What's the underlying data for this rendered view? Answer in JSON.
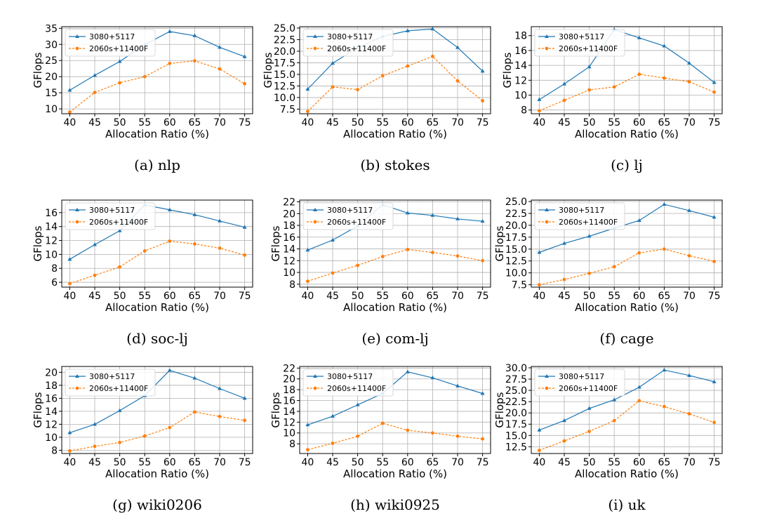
{
  "colors": {
    "series1": "#1f77b4",
    "series2": "#ff7f0e",
    "grid": "#b0b0b0",
    "axis": "#000000"
  },
  "chart_data": [
    {
      "type": "line",
      "caption": "(a) nlp",
      "xlabel": "Allocation Ratio (%)",
      "ylabel": "GFlops",
      "x": [
        40,
        45,
        50,
        55,
        60,
        65,
        70,
        75
      ],
      "ylim": [
        8.5,
        35.5
      ],
      "yticks": [
        10,
        15,
        20,
        25,
        30,
        35
      ],
      "yticklabels": [
        "10",
        "15",
        "20",
        "25",
        "30",
        "35"
      ],
      "legend_loc": "upper-left",
      "series": [
        {
          "name": "3080+5117",
          "style": "solid",
          "marker": "triangle",
          "values": [
            15.8,
            20.4,
            24.7,
            29.9,
            34.0,
            32.7,
            29.1,
            26.2
          ]
        },
        {
          "name": "2060s+11400F",
          "style": "dashed",
          "marker": "circle",
          "values": [
            9.0,
            15.1,
            18.1,
            20.0,
            24.1,
            24.9,
            22.4,
            17.8
          ]
        }
      ]
    },
    {
      "type": "line",
      "caption": "(b) stokes",
      "xlabel": "Allocation Ratio (%)",
      "ylabel": "GFlops",
      "x": [
        40,
        45,
        50,
        55,
        60,
        65,
        70,
        75
      ],
      "ylim": [
        6.5,
        25.3
      ],
      "yticks": [
        7.5,
        10,
        12.5,
        15,
        17.5,
        20,
        22.5,
        25
      ],
      "yticklabels": [
        "7.5",
        "10.0",
        "12.5",
        "15.0",
        "17.5",
        "20.0",
        "22.5",
        "25.0"
      ],
      "legend_loc": "upper-left",
      "series": [
        {
          "name": "3080+5117",
          "style": "solid",
          "marker": "triangle",
          "values": [
            11.8,
            17.4,
            20.8,
            23.2,
            24.4,
            24.8,
            20.8,
            15.7
          ]
        },
        {
          "name": "2060s+11400F",
          "style": "dashed",
          "marker": "circle",
          "values": [
            7.0,
            12.3,
            11.7,
            14.7,
            16.8,
            18.9,
            13.6,
            9.3
          ]
        }
      ]
    },
    {
      "type": "line",
      "caption": "(c) lj",
      "xlabel": "Allocation Ratio (%)",
      "ylabel": "GFlops",
      "x": [
        40,
        45,
        50,
        55,
        60,
        65,
        70,
        75
      ],
      "ylim": [
        7.5,
        19.2
      ],
      "yticks": [
        8,
        10,
        12,
        14,
        16,
        18
      ],
      "yticklabels": [
        "8",
        "10",
        "12",
        "14",
        "16",
        "18"
      ],
      "legend_loc": "upper-left",
      "series": [
        {
          "name": "3080+5117",
          "style": "solid",
          "marker": "triangle",
          "values": [
            9.4,
            11.5,
            13.8,
            18.8,
            17.7,
            16.6,
            14.3,
            11.7
          ]
        },
        {
          "name": "2060s+11400F",
          "style": "dashed",
          "marker": "circle",
          "values": [
            7.9,
            9.3,
            10.7,
            11.1,
            12.8,
            12.3,
            11.8,
            10.4
          ]
        }
      ]
    },
    {
      "type": "line",
      "caption": "(d) soc-lj",
      "xlabel": "Allocation Ratio (%)",
      "ylabel": "GFlops",
      "x": [
        40,
        45,
        50,
        55,
        60,
        65,
        70,
        75
      ],
      "ylim": [
        5.3,
        17.8
      ],
      "yticks": [
        6,
        8,
        10,
        12,
        14,
        16
      ],
      "yticklabels": [
        "6",
        "8",
        "10",
        "12",
        "14",
        "16"
      ],
      "legend_loc": "upper-left",
      "series": [
        {
          "name": "3080+5117",
          "style": "solid",
          "marker": "triangle",
          "values": [
            9.3,
            11.4,
            13.4,
            17.1,
            16.4,
            15.7,
            14.8,
            13.9
          ]
        },
        {
          "name": "2060s+11400F",
          "style": "dashed",
          "marker": "circle",
          "values": [
            5.8,
            7.0,
            8.2,
            10.5,
            11.9,
            11.5,
            10.9,
            9.9
          ]
        }
      ]
    },
    {
      "type": "line",
      "caption": "(e) com-lj",
      "xlabel": "Allocation Ratio (%)",
      "ylabel": "GFlops",
      "x": [
        40,
        45,
        50,
        55,
        60,
        65,
        70,
        75
      ],
      "ylim": [
        7.5,
        22.3
      ],
      "yticks": [
        8,
        10,
        12,
        14,
        16,
        18,
        20,
        22
      ],
      "yticklabels": [
        "8",
        "10",
        "12",
        "14",
        "16",
        "18",
        "20",
        "22"
      ],
      "legend_loc": "upper-left",
      "series": [
        {
          "name": "3080+5117",
          "style": "solid",
          "marker": "triangle",
          "values": [
            13.8,
            15.5,
            17.9,
            21.5,
            20.1,
            19.7,
            19.1,
            18.7
          ]
        },
        {
          "name": "2060s+11400F",
          "style": "dashed",
          "marker": "circle",
          "values": [
            8.5,
            9.9,
            11.2,
            12.7,
            13.9,
            13.4,
            12.8,
            12.0
          ]
        }
      ]
    },
    {
      "type": "line",
      "caption": "(f) cage",
      "xlabel": "Allocation Ratio (%)",
      "ylabel": "GFlops",
      "x": [
        40,
        45,
        50,
        55,
        60,
        65,
        70,
        75
      ],
      "ylim": [
        7.0,
        25.3
      ],
      "yticks": [
        7.5,
        10,
        12.5,
        15,
        17.5,
        20,
        22.5,
        25
      ],
      "yticklabels": [
        "7.5",
        "10.0",
        "12.5",
        "15.0",
        "17.5",
        "20.0",
        "22.5",
        "25.0"
      ],
      "legend_loc": "upper-left",
      "series": [
        {
          "name": "3080+5117",
          "style": "solid",
          "marker": "triangle",
          "values": [
            14.3,
            16.2,
            17.7,
            19.4,
            21.0,
            24.4,
            23.1,
            21.7
          ]
        },
        {
          "name": "2060s+11400F",
          "style": "dashed",
          "marker": "circle",
          "values": [
            7.5,
            8.6,
            9.9,
            11.3,
            14.2,
            15.0,
            13.6,
            12.4
          ]
        }
      ]
    },
    {
      "type": "line",
      "caption": "(g) wiki0206",
      "xlabel": "Allocation Ratio (%)",
      "ylabel": "GFlops",
      "x": [
        40,
        45,
        50,
        55,
        60,
        65,
        70,
        75
      ],
      "ylim": [
        7.5,
        20.9
      ],
      "yticks": [
        8,
        10,
        12,
        14,
        16,
        18,
        20
      ],
      "yticklabels": [
        "8",
        "10",
        "12",
        "14",
        "16",
        "18",
        "20"
      ],
      "legend_loc": "upper-left",
      "series": [
        {
          "name": "3080+5117",
          "style": "solid",
          "marker": "triangle",
          "values": [
            10.7,
            12.0,
            14.1,
            16.4,
            20.3,
            19.1,
            17.5,
            16.0
          ]
        },
        {
          "name": "2060s+11400F",
          "style": "dashed",
          "marker": "circle",
          "values": [
            7.9,
            8.6,
            9.2,
            10.2,
            11.5,
            13.9,
            13.2,
            12.6
          ]
        }
      ]
    },
    {
      "type": "line",
      "caption": "(h) wiki0925",
      "xlabel": "Allocation Ratio (%)",
      "ylabel": "GFlops",
      "x": [
        40,
        45,
        50,
        55,
        60,
        65,
        70,
        75
      ],
      "ylim": [
        6.2,
        22.3
      ],
      "yticks": [
        8,
        10,
        12,
        14,
        16,
        18,
        20,
        22
      ],
      "yticklabels": [
        "8",
        "10",
        "12",
        "14",
        "16",
        "18",
        "20",
        "22"
      ],
      "legend_loc": "upper-left",
      "series": [
        {
          "name": "3080+5117",
          "style": "solid",
          "marker": "triangle",
          "values": [
            11.5,
            13.1,
            15.2,
            17.3,
            21.3,
            20.2,
            18.7,
            17.3
          ]
        },
        {
          "name": "2060s+11400F",
          "style": "dashed",
          "marker": "circle",
          "values": [
            6.9,
            8.1,
            9.4,
            11.8,
            10.5,
            10.0,
            9.4,
            8.9
          ]
        }
      ]
    },
    {
      "type": "line",
      "caption": "(i) uk",
      "xlabel": "Allocation Ratio (%)",
      "ylabel": "GFlops",
      "x": [
        40,
        45,
        50,
        55,
        60,
        65,
        70,
        75
      ],
      "ylim": [
        11.0,
        30.3
      ],
      "yticks": [
        12.5,
        15,
        17.5,
        20,
        22.5,
        25,
        27.5,
        30
      ],
      "yticklabels": [
        "12.5",
        "15.0",
        "17.5",
        "20.0",
        "22.5",
        "25.0",
        "27.5",
        "30.0"
      ],
      "legend_loc": "upper-left",
      "series": [
        {
          "name": "3080+5117",
          "style": "solid",
          "marker": "triangle",
          "values": [
            16.2,
            18.3,
            21.0,
            22.9,
            25.7,
            29.5,
            28.3,
            26.9
          ]
        },
        {
          "name": "2060s+11400F",
          "style": "dashed",
          "marker": "circle",
          "values": [
            11.7,
            13.8,
            15.9,
            18.3,
            22.7,
            21.4,
            19.8,
            17.9
          ]
        }
      ]
    }
  ]
}
